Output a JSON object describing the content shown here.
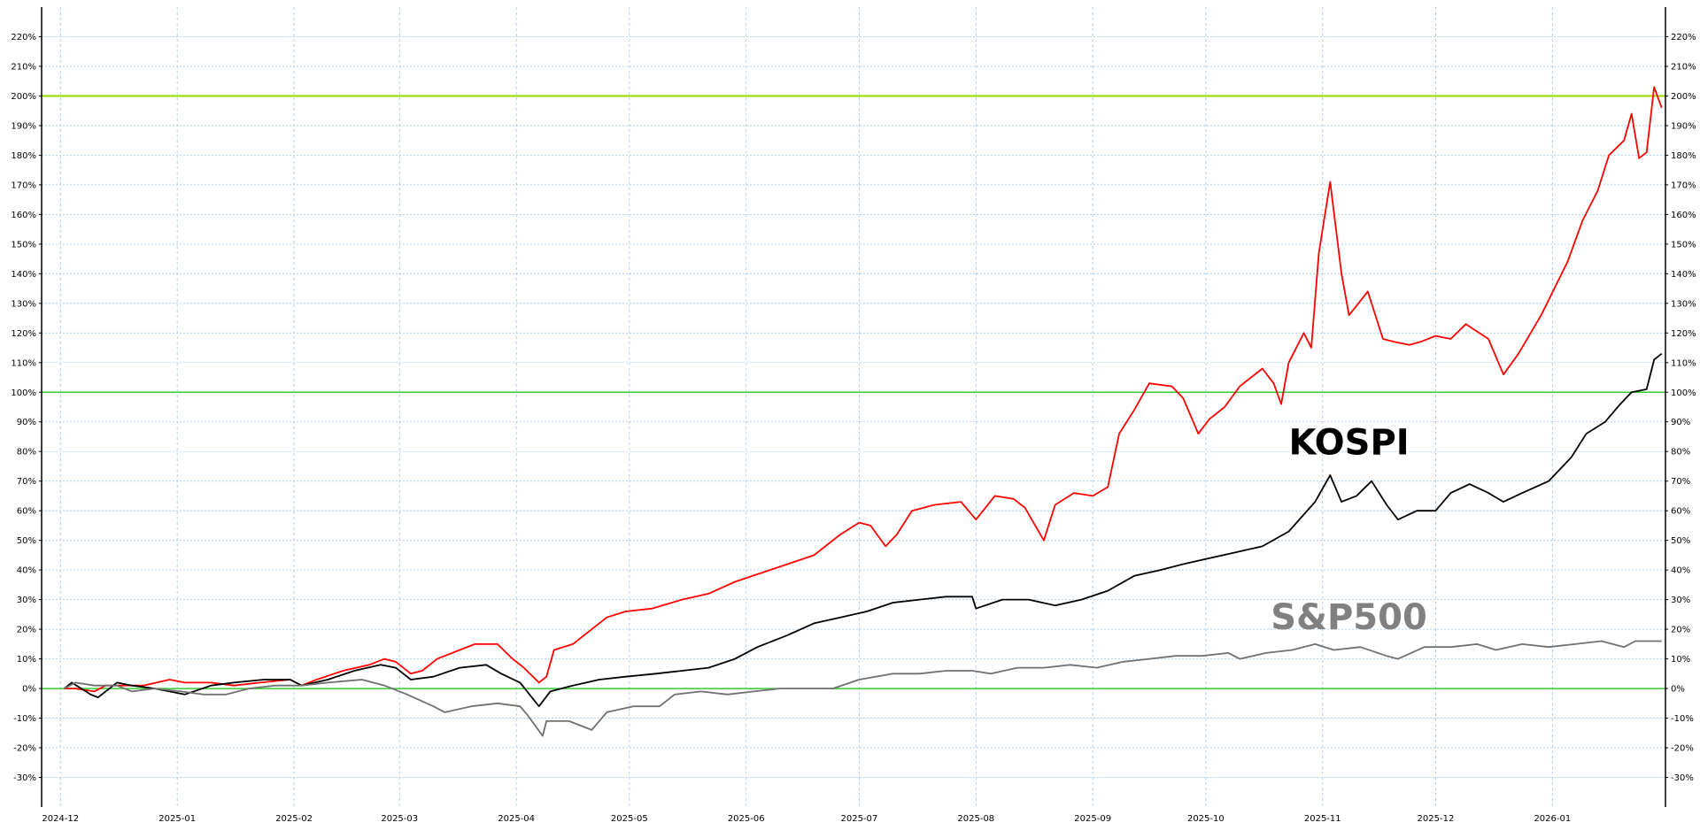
{
  "chart_data": {
    "type": "line",
    "title": "",
    "xlabel": "",
    "ylabel": "",
    "grid": true,
    "xlim": [
      "2024-11-26",
      "2026-01-31"
    ],
    "ylim": [
      -40,
      230
    ],
    "y_ticks": [
      -30,
      -20,
      -10,
      0,
      10,
      20,
      30,
      40,
      50,
      60,
      70,
      80,
      90,
      100,
      110,
      120,
      130,
      140,
      150,
      160,
      170,
      180,
      190,
      200,
      210,
      220
    ],
    "y_tick_labels": [
      "-30%",
      "-20%",
      "-10%",
      "0%",
      "10%",
      "20%",
      "30%",
      "40%",
      "50%",
      "60%",
      "70%",
      "80%",
      "90%",
      "100%",
      "110%",
      "120%",
      "130%",
      "140%",
      "150%",
      "160%",
      "170%",
      "180%",
      "190%",
      "200%",
      "210%",
      "220%"
    ],
    "x_ticks": [
      "2024-12-01",
      "2025-01-01",
      "2025-02-01",
      "2025-03-01",
      "2025-04-01",
      "2025-05-01",
      "2025-06-01",
      "2025-07-01",
      "2025-08-01",
      "2025-09-01",
      "2025-10-01",
      "2025-11-01",
      "2025-12-01",
      "2026-01-01"
    ],
    "x_tick_labels": [
      "2024-12",
      "2025-01",
      "2025-02",
      "2025-03",
      "2025-04",
      "2025-05",
      "2025-06",
      "2025-07",
      "2025-08",
      "2025-09",
      "2025-10",
      "2025-11",
      "2025-12",
      "2026-01"
    ],
    "reference_lines": [
      {
        "y": 0,
        "color": "#33cc33"
      },
      {
        "y": 100,
        "color": "#33cc33"
      },
      {
        "y": 200,
        "color": "#99dd00"
      }
    ],
    "annotations": [
      {
        "text": "KOSPI",
        "date": "2025-11-08",
        "y": 79,
        "color": "#000000"
      },
      {
        "text": "S&P500",
        "date": "2025-11-08",
        "y": 20,
        "color": "#808080"
      }
    ],
    "series": [
      {
        "color": "#ff0000",
        "points": [
          [
            "2024-12-02",
            0
          ],
          [
            "2024-12-05",
            0
          ],
          [
            "2024-12-10",
            -1
          ],
          [
            "2024-12-13",
            1
          ],
          [
            "2024-12-18",
            1
          ],
          [
            "2024-12-23",
            1
          ],
          [
            "2024-12-30",
            3
          ],
          [
            "2025-01-03",
            2
          ],
          [
            "2025-01-10",
            2
          ],
          [
            "2025-01-16",
            1
          ],
          [
            "2025-01-23",
            2
          ],
          [
            "2025-01-31",
            3
          ],
          [
            "2025-02-03",
            1
          ],
          [
            "2025-02-07",
            3
          ],
          [
            "2025-02-14",
            6
          ],
          [
            "2025-02-21",
            8
          ],
          [
            "2025-02-25",
            10
          ],
          [
            "2025-02-28",
            9
          ],
          [
            "2025-03-04",
            5
          ],
          [
            "2025-03-07",
            6
          ],
          [
            "2025-03-11",
            10
          ],
          [
            "2025-03-17",
            13
          ],
          [
            "2025-03-21",
            15
          ],
          [
            "2025-03-27",
            15
          ],
          [
            "2025-03-31",
            10
          ],
          [
            "2025-04-03",
            7
          ],
          [
            "2025-04-07",
            2
          ],
          [
            "2025-04-09",
            4
          ],
          [
            "2025-04-11",
            13
          ],
          [
            "2025-04-16",
            15
          ],
          [
            "2025-04-21",
            20
          ],
          [
            "2025-04-25",
            24
          ],
          [
            "2025-04-30",
            26
          ],
          [
            "2025-05-07",
            27
          ],
          [
            "2025-05-15",
            30
          ],
          [
            "2025-05-22",
            32
          ],
          [
            "2025-05-29",
            36
          ],
          [
            "2025-06-05",
            39
          ],
          [
            "2025-06-12",
            42
          ],
          [
            "2025-06-19",
            45
          ],
          [
            "2025-06-26",
            52
          ],
          [
            "2025-07-01",
            56
          ],
          [
            "2025-07-04",
            55
          ],
          [
            "2025-07-08",
            48
          ],
          [
            "2025-07-11",
            52
          ],
          [
            "2025-07-15",
            60
          ],
          [
            "2025-07-21",
            62
          ],
          [
            "2025-07-28",
            63
          ],
          [
            "2025-08-01",
            57
          ],
          [
            "2025-08-06",
            65
          ],
          [
            "2025-08-11",
            64
          ],
          [
            "2025-08-14",
            61
          ],
          [
            "2025-08-19",
            50
          ],
          [
            "2025-08-22",
            62
          ],
          [
            "2025-08-27",
            66
          ],
          [
            "2025-09-01",
            65
          ],
          [
            "2025-09-05",
            68
          ],
          [
            "2025-09-08",
            86
          ],
          [
            "2025-09-12",
            94
          ],
          [
            "2025-09-16",
            103
          ],
          [
            "2025-09-22",
            102
          ],
          [
            "2025-09-25",
            98
          ],
          [
            "2025-09-29",
            86
          ],
          [
            "2025-10-02",
            91
          ],
          [
            "2025-10-06",
            95
          ],
          [
            "2025-10-10",
            102
          ],
          [
            "2025-10-16",
            108
          ],
          [
            "2025-10-19",
            103
          ],
          [
            "2025-10-21",
            96
          ],
          [
            "2025-10-23",
            110
          ],
          [
            "2025-10-27",
            120
          ],
          [
            "2025-10-29",
            115
          ],
          [
            "2025-10-31",
            147
          ],
          [
            "2025-11-03",
            171
          ],
          [
            "2025-11-06",
            140
          ],
          [
            "2025-11-08",
            126
          ],
          [
            "2025-11-13",
            134
          ],
          [
            "2025-11-17",
            118
          ],
          [
            "2025-11-20",
            117
          ],
          [
            "2025-11-24",
            116
          ],
          [
            "2025-11-27",
            117
          ],
          [
            "2025-12-01",
            119
          ],
          [
            "2025-12-05",
            118
          ],
          [
            "2025-12-09",
            123
          ],
          [
            "2025-12-15",
            118
          ],
          [
            "2025-12-19",
            106
          ],
          [
            "2025-12-23",
            113
          ],
          [
            "2025-12-29",
            126
          ],
          [
            "2026-01-05",
            144
          ],
          [
            "2026-01-09",
            158
          ],
          [
            "2026-01-13",
            168
          ],
          [
            "2026-01-16",
            180
          ],
          [
            "2026-01-20",
            185
          ],
          [
            "2026-01-22",
            194
          ],
          [
            "2026-01-24",
            179
          ],
          [
            "2026-01-26",
            181
          ],
          [
            "2026-01-28",
            203
          ],
          [
            "2026-01-30",
            196
          ]
        ]
      },
      {
        "color": "#000000",
        "points": [
          [
            "2024-12-02",
            0
          ],
          [
            "2024-12-04",
            2
          ],
          [
            "2024-12-09",
            -2
          ],
          [
            "2024-12-11",
            -3
          ],
          [
            "2024-12-16",
            2
          ],
          [
            "2024-12-20",
            1
          ],
          [
            "2024-12-26",
            0
          ],
          [
            "2025-01-03",
            -2
          ],
          [
            "2025-01-10",
            1
          ],
          [
            "2025-01-16",
            2
          ],
          [
            "2025-01-24",
            3
          ],
          [
            "2025-01-31",
            3
          ],
          [
            "2025-02-03",
            1
          ],
          [
            "2025-02-10",
            3
          ],
          [
            "2025-02-17",
            6
          ],
          [
            "2025-02-24",
            8
          ],
          [
            "2025-02-28",
            7
          ],
          [
            "2025-03-04",
            3
          ],
          [
            "2025-03-10",
            4
          ],
          [
            "2025-03-17",
            7
          ],
          [
            "2025-03-24",
            8
          ],
          [
            "2025-03-28",
            5
          ],
          [
            "2025-04-02",
            2
          ],
          [
            "2025-04-07",
            -6
          ],
          [
            "2025-04-10",
            -1
          ],
          [
            "2025-04-16",
            1
          ],
          [
            "2025-04-23",
            3
          ],
          [
            "2025-04-30",
            4
          ],
          [
            "2025-05-08",
            5
          ],
          [
            "2025-05-15",
            6
          ],
          [
            "2025-05-22",
            7
          ],
          [
            "2025-05-29",
            10
          ],
          [
            "2025-06-04",
            14
          ],
          [
            "2025-06-12",
            18
          ],
          [
            "2025-06-19",
            22
          ],
          [
            "2025-06-26",
            24
          ],
          [
            "2025-07-03",
            26
          ],
          [
            "2025-07-10",
            29
          ],
          [
            "2025-07-17",
            30
          ],
          [
            "2025-07-24",
            31
          ],
          [
            "2025-07-31",
            31
          ],
          [
            "2025-08-01",
            27
          ],
          [
            "2025-08-08",
            30
          ],
          [
            "2025-08-15",
            30
          ],
          [
            "2025-08-22",
            28
          ],
          [
            "2025-08-29",
            30
          ],
          [
            "2025-09-05",
            33
          ],
          [
            "2025-09-12",
            38
          ],
          [
            "2025-09-19",
            40
          ],
          [
            "2025-09-25",
            42
          ],
          [
            "2025-10-02",
            44
          ],
          [
            "2025-10-09",
            46
          ],
          [
            "2025-10-16",
            48
          ],
          [
            "2025-10-23",
            53
          ],
          [
            "2025-10-30",
            63
          ],
          [
            "2025-11-03",
            72
          ],
          [
            "2025-11-06",
            63
          ],
          [
            "2025-11-10",
            65
          ],
          [
            "2025-11-14",
            70
          ],
          [
            "2025-11-18",
            62
          ],
          [
            "2025-11-21",
            57
          ],
          [
            "2025-11-26",
            60
          ],
          [
            "2025-12-01",
            60
          ],
          [
            "2025-12-05",
            66
          ],
          [
            "2025-12-10",
            69
          ],
          [
            "2025-12-15",
            66
          ],
          [
            "2025-12-19",
            63
          ],
          [
            "2025-12-24",
            66
          ],
          [
            "2025-12-31",
            70
          ],
          [
            "2026-01-06",
            78
          ],
          [
            "2026-01-10",
            86
          ],
          [
            "2026-01-15",
            90
          ],
          [
            "2026-01-19",
            96
          ],
          [
            "2026-01-22",
            100
          ],
          [
            "2026-01-26",
            101
          ],
          [
            "2026-01-28",
            111
          ],
          [
            "2026-01-30",
            113
          ]
        ]
      },
      {
        "color": "#707070",
        "points": [
          [
            "2024-12-02",
            0
          ],
          [
            "2024-12-05",
            2
          ],
          [
            "2024-12-10",
            1
          ],
          [
            "2024-12-16",
            1
          ],
          [
            "2024-12-20",
            -1
          ],
          [
            "2024-12-26",
            0
          ],
          [
            "2025-01-02",
            -1
          ],
          [
            "2025-01-08",
            -2
          ],
          [
            "2025-01-14",
            -2
          ],
          [
            "2025-01-20",
            0
          ],
          [
            "2025-01-27",
            1
          ],
          [
            "2025-02-03",
            1
          ],
          [
            "2025-02-10",
            2
          ],
          [
            "2025-02-19",
            3
          ],
          [
            "2025-02-25",
            1
          ],
          [
            "2025-03-03",
            -2
          ],
          [
            "2025-03-10",
            -6
          ],
          [
            "2025-03-13",
            -8
          ],
          [
            "2025-03-20",
            -6
          ],
          [
            "2025-03-27",
            -5
          ],
          [
            "2025-04-02",
            -6
          ],
          [
            "2025-04-04",
            -9
          ],
          [
            "2025-04-08",
            -16
          ],
          [
            "2025-04-09",
            -11
          ],
          [
            "2025-04-15",
            -11
          ],
          [
            "2025-04-21",
            -14
          ],
          [
            "2025-04-25",
            -8
          ],
          [
            "2025-05-02",
            -6
          ],
          [
            "2025-05-09",
            -6
          ],
          [
            "2025-05-13",
            -2
          ],
          [
            "2025-05-20",
            -1
          ],
          [
            "2025-05-27",
            -2
          ],
          [
            "2025-06-03",
            -1
          ],
          [
            "2025-06-10",
            0
          ],
          [
            "2025-06-17",
            0
          ],
          [
            "2025-06-24",
            0
          ],
          [
            "2025-07-01",
            3
          ],
          [
            "2025-07-10",
            5
          ],
          [
            "2025-07-17",
            5
          ],
          [
            "2025-07-24",
            6
          ],
          [
            "2025-07-31",
            6
          ],
          [
            "2025-08-05",
            5
          ],
          [
            "2025-08-12",
            7
          ],
          [
            "2025-08-19",
            7
          ],
          [
            "2025-08-26",
            8
          ],
          [
            "2025-09-02",
            7
          ],
          [
            "2025-09-09",
            9
          ],
          [
            "2025-09-16",
            10
          ],
          [
            "2025-09-23",
            11
          ],
          [
            "2025-09-30",
            11
          ],
          [
            "2025-10-07",
            12
          ],
          [
            "2025-10-10",
            10
          ],
          [
            "2025-10-17",
            12
          ],
          [
            "2025-10-24",
            13
          ],
          [
            "2025-10-30",
            15
          ],
          [
            "2025-11-04",
            13
          ],
          [
            "2025-11-11",
            14
          ],
          [
            "2025-11-18",
            11
          ],
          [
            "2025-11-21",
            10
          ],
          [
            "2025-11-28",
            14
          ],
          [
            "2025-12-05",
            14
          ],
          [
            "2025-12-12",
            15
          ],
          [
            "2025-12-17",
            13
          ],
          [
            "2025-12-24",
            15
          ],
          [
            "2025-12-31",
            14
          ],
          [
            "2026-01-07",
            15
          ],
          [
            "2026-01-14",
            16
          ],
          [
            "2026-01-20",
            14
          ],
          [
            "2026-01-23",
            16
          ],
          [
            "2026-01-27",
            16
          ],
          [
            "2026-01-30",
            16
          ]
        ]
      }
    ]
  }
}
